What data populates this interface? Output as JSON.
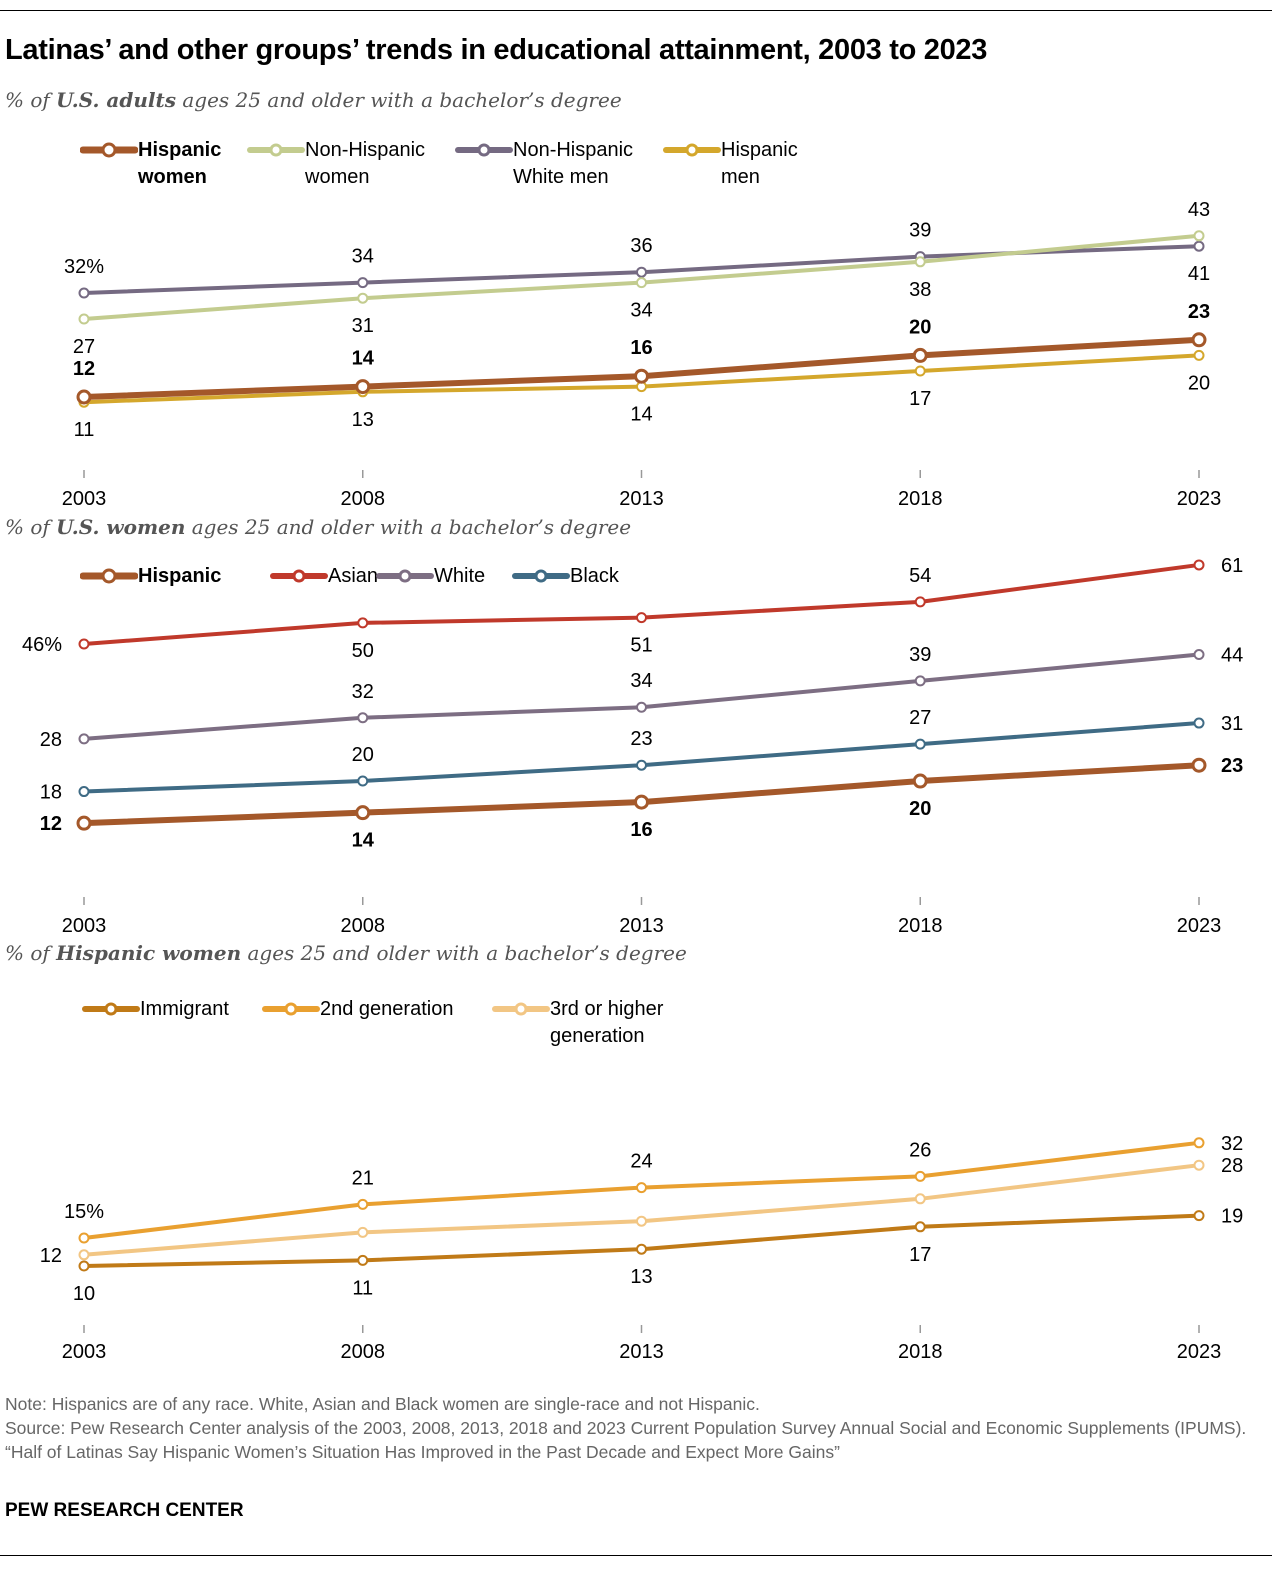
{
  "title": "Latinas’ and other groups’ trends in educational attainment, 2003 to 2023",
  "notes": {
    "note": "Note: Hispanics are of any race. White, Asian and Black women are single-race and not Hispanic.",
    "source": "Source: Pew Research Center analysis of the 2003, 2008, 2013, 2018 and 2023 Current Population Survey Annual Social and Economic Supplements (IPUMS).",
    "report": "“Half of Latinas Say Hispanic Women’s Situation Has Improved in the Past Decade and Expect More Gains”",
    "brand": "PEW RESEARCH CENTER"
  },
  "chart_data": [
    {
      "type": "line",
      "subtitle_pre": "% of ",
      "subtitle_bold": "U.S. adults",
      "subtitle_post": " ages 25 and older with a bachelor’s degree",
      "x": [
        "2003",
        "2008",
        "2013",
        "2018",
        "2023"
      ],
      "legend": "top",
      "grid": false,
      "series": [
        {
          "name_line1": "Hispanic",
          "name_line2": "women",
          "color": "#a4582a",
          "bold": true,
          "values": [
            12,
            14,
            16,
            20,
            23
          ],
          "labels": [
            "12",
            "14",
            "16",
            "20",
            "23"
          ]
        },
        {
          "name_line1": "Non-Hispanic",
          "name_line2": "women",
          "color": "#c3cc8f",
          "bold": false,
          "values": [
            27,
            31,
            34,
            38,
            43
          ],
          "labels": [
            "27",
            "31",
            "34",
            "38",
            "43"
          ]
        },
        {
          "name_line1": "Non-Hispanic",
          "name_line2": "White men",
          "color": "#756a82",
          "bold": false,
          "values": [
            32,
            34,
            36,
            39,
            41
          ],
          "labels": [
            "32%",
            "34",
            "36",
            "39",
            "41"
          ]
        },
        {
          "name_line1": "Hispanic",
          "name_line2": "men",
          "color": "#d4a72c",
          "bold": false,
          "values": [
            11,
            13,
            14,
            17,
            20
          ],
          "labels": [
            "11",
            "13",
            "14",
            "17",
            "20"
          ]
        }
      ]
    },
    {
      "type": "line",
      "subtitle_pre": "% of ",
      "subtitle_bold": "U.S. women",
      "subtitle_post": " ages 25 and older with a bachelor’s degree",
      "x": [
        "2003",
        "2008",
        "2013",
        "2018",
        "2023"
      ],
      "legend": "top",
      "grid": false,
      "series": [
        {
          "name_line1": "Hispanic",
          "name_line2": "",
          "color": "#a4582a",
          "bold": true,
          "values": [
            12,
            14,
            16,
            20,
            23
          ],
          "labels": [
            "12",
            "14",
            "16",
            "20",
            "23"
          ]
        },
        {
          "name_line1": "Asian",
          "name_line2": "",
          "color": "#c0392b",
          "bold": false,
          "values": [
            46,
            50,
            51,
            54,
            61
          ],
          "labels": [
            "46%",
            "50",
            "51",
            "54",
            "61"
          ]
        },
        {
          "name_line1": "White",
          "name_line2": "",
          "color": "#7d6e83",
          "bold": false,
          "values": [
            28,
            32,
            34,
            39,
            44
          ],
          "labels": [
            "28",
            "32",
            "34",
            "39",
            "44"
          ]
        },
        {
          "name_line1": "Black",
          "name_line2": "",
          "color": "#3f6b85",
          "bold": false,
          "values": [
            18,
            20,
            23,
            27,
            31
          ],
          "labels": [
            "18",
            "20",
            "23",
            "27",
            "31"
          ]
        }
      ]
    },
    {
      "type": "line",
      "subtitle_pre": "% of ",
      "subtitle_bold": "Hispanic women",
      "subtitle_post": " ages 25 and older with a bachelor’s degree",
      "x": [
        "2003",
        "2008",
        "2013",
        "2018",
        "2023"
      ],
      "legend": "top",
      "grid": false,
      "series": [
        {
          "name_line1": "Immigrant",
          "name_line2": "",
          "color": "#c07a17",
          "bold": false,
          "values": [
            10,
            11,
            13,
            17,
            19
          ],
          "labels": [
            "10",
            "11",
            "13",
            "17",
            "19"
          ]
        },
        {
          "name_line1": "2nd generation",
          "name_line2": "",
          "color": "#e9a030",
          "bold": false,
          "values": [
            15,
            21,
            24,
            26,
            32
          ],
          "labels": [
            "15%",
            "21",
            "24",
            "26",
            "32"
          ]
        },
        {
          "name_line1": "3rd or higher",
          "name_line2": "generation",
          "color": "#f2c684",
          "bold": false,
          "values": [
            12,
            16,
            18,
            22,
            28
          ],
          "labels": [
            "12",
            null,
            null,
            null,
            "28"
          ]
        }
      ]
    }
  ]
}
